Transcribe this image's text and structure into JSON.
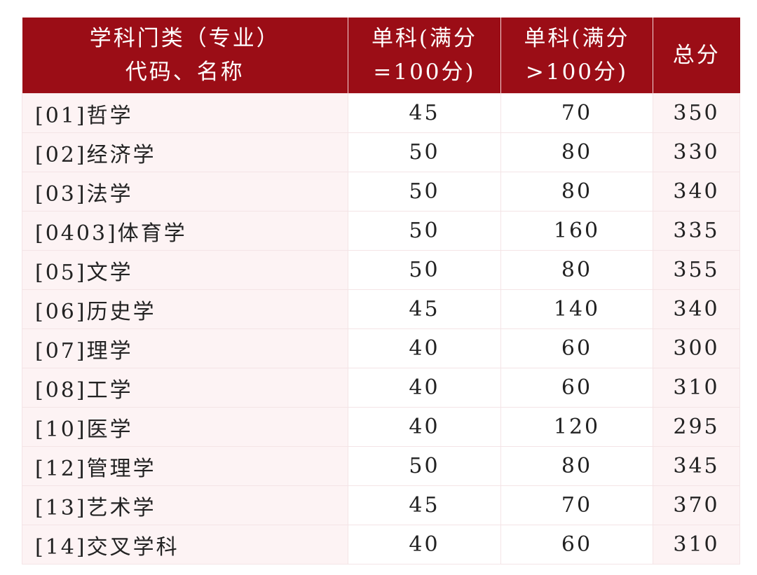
{
  "headers": [
    {
      "line1": "学科门类（专业）",
      "line2": "代码、名称"
    },
    {
      "line1": "单科(满分",
      "line2": "=100分)"
    },
    {
      "line1": "单科(满分",
      "line2": ">100分)"
    },
    {
      "line1": "总分",
      "line2": ""
    }
  ],
  "colors": {
    "header_bg": "#9b0d16",
    "row_tint": "#fdf3f4"
  },
  "rows": [
    [
      "[01]哲学",
      "45",
      "70",
      "350"
    ],
    [
      "[02]经济学",
      "50",
      "80",
      "330"
    ],
    [
      "[03]法学",
      "50",
      "80",
      "340"
    ],
    [
      "[0403]体育学",
      "50",
      "160",
      "335"
    ],
    [
      "[05]文学",
      "50",
      "80",
      "355"
    ],
    [
      "[06]历史学",
      "45",
      "140",
      "340"
    ],
    [
      "[07]理学",
      "40",
      "60",
      "300"
    ],
    [
      "[08]工学",
      "40",
      "60",
      "310"
    ],
    [
      "[10]医学",
      "40",
      "120",
      "295"
    ],
    [
      "[12]管理学",
      "50",
      "80",
      "345"
    ],
    [
      "[13]艺术学",
      "45",
      "70",
      "370"
    ],
    [
      "[14]交叉学科",
      "40",
      "60",
      "310"
    ]
  ]
}
